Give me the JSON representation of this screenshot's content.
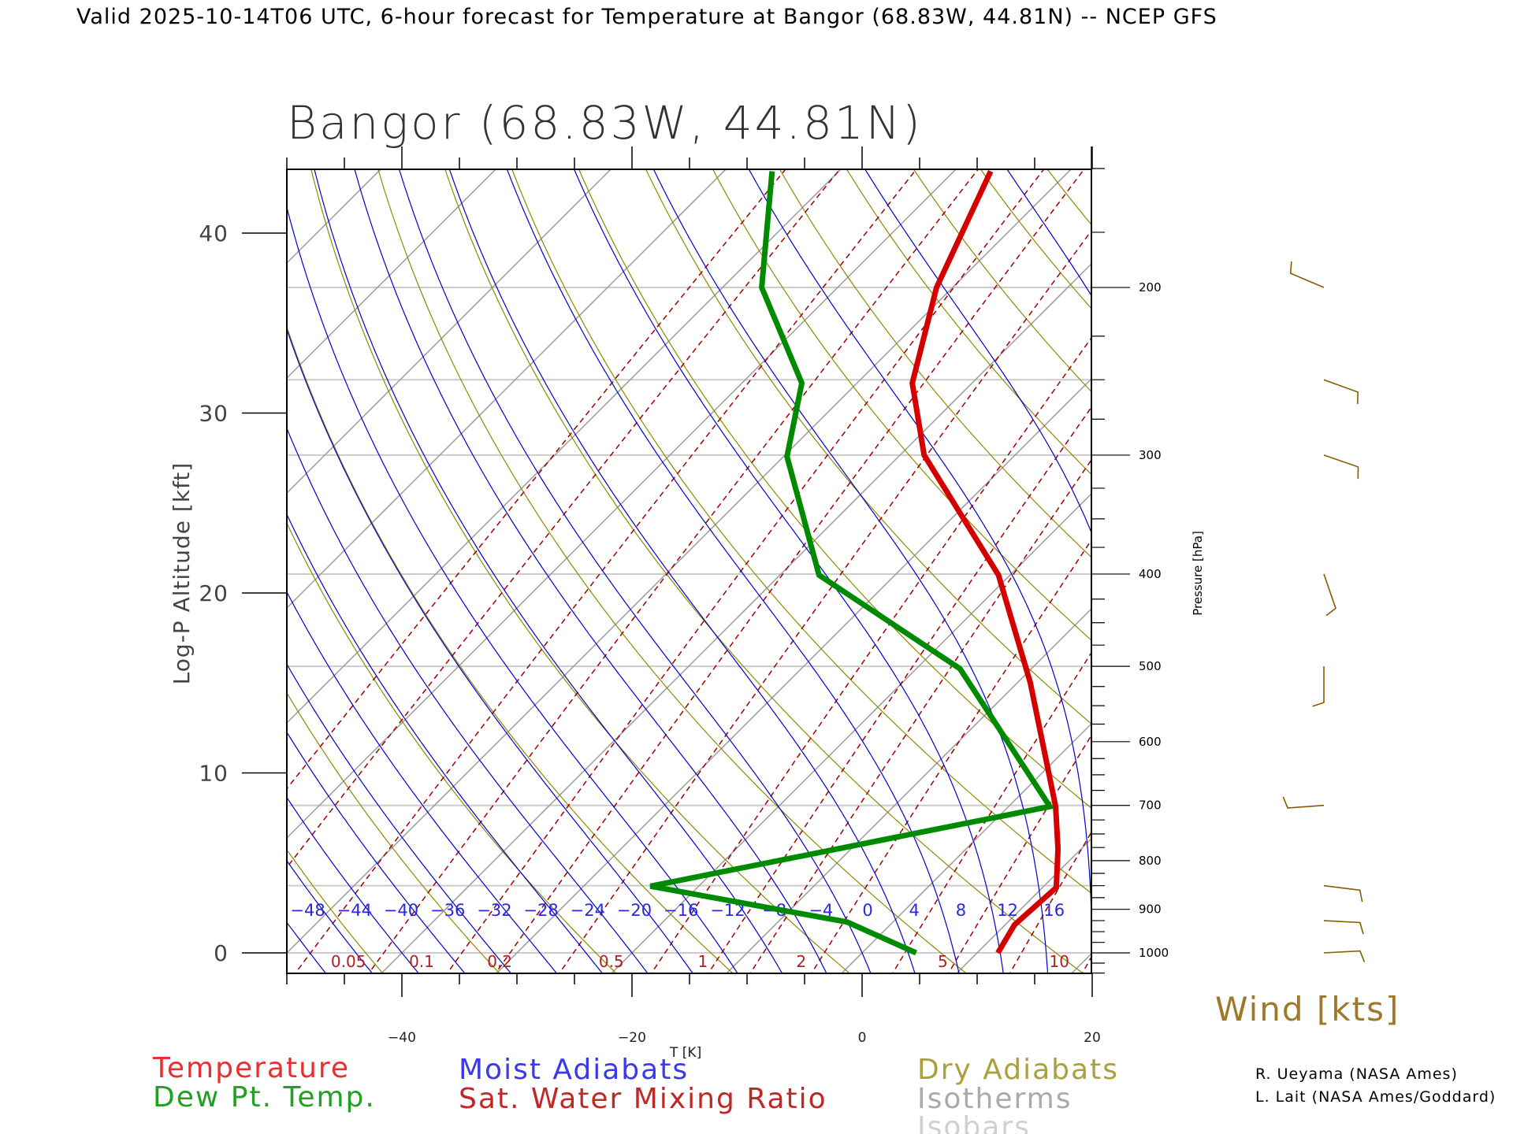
{
  "header": {
    "title": "Valid 2025-10-14T06 UTC, 6-hour forecast for Temperature at Bangor (68.83W, 44.81N) -- NCEP GFS"
  },
  "chart_data": {
    "type": "line",
    "subtype": "skew-T log-P diagram",
    "title": "Bangor (68.83W, 44.81N)",
    "xlabel": "T [K]",
    "ylabel": "Log-P Altitude [kft]",
    "ylabel_right": "Pressure [hPa]",
    "xlim": [
      -50,
      20
    ],
    "pressure_range_hpa": [
      1050,
      150
    ],
    "x_ticks": [
      -40,
      -20,
      0,
      20
    ],
    "x_tick_labels": [
      "−40",
      "−20",
      "0",
      "20"
    ],
    "altitude_ticks_kft": [
      0,
      10,
      20,
      30,
      40
    ],
    "altitude_tick_labels": [
      "0",
      "10",
      "20",
      "30",
      "40"
    ],
    "pressure_tick_labels": [
      200,
      300,
      400,
      500,
      600,
      700,
      800,
      900,
      1000
    ],
    "isobars_hpa": [
      1000,
      850,
      700,
      500,
      400,
      300,
      250,
      200
    ],
    "series": [
      {
        "name": "Temperature",
        "color": "#d40000",
        "points": [
          [
            1000,
            11.8
          ],
          [
            934,
            10.8
          ],
          [
            854,
            11.2
          ],
          [
            778,
            8.0
          ],
          [
            702,
            4.1
          ],
          [
            520,
            -8.9
          ],
          [
            401,
            -21.0
          ],
          [
            300,
            -37.9
          ],
          [
            252,
            -45.2
          ],
          [
            200,
            -51.4
          ],
          [
            151,
            -56.8
          ]
        ]
      },
      {
        "name": "Dew Pt. Temp.",
        "color": "#008a00",
        "points": [
          [
            1000,
            4.7
          ],
          [
            928,
            -4.0
          ],
          [
            851,
            -24.2
          ],
          [
            702,
            3.6
          ],
          [
            503,
            -16.2
          ],
          [
            401,
            -36.6
          ],
          [
            301,
            -49.7
          ],
          [
            252,
            -54.8
          ],
          [
            200,
            -66.6
          ],
          [
            151,
            -75.8
          ]
        ]
      }
    ],
    "moist_adiabat_labels": [
      "−48",
      "−44",
      "−40",
      "−36",
      "−32",
      "−28",
      "−24",
      "−20",
      "−16",
      "−12",
      "−8",
      "−4",
      "0",
      "4",
      "8",
      "12",
      "16"
    ],
    "moist_adiabat_values": [
      -48,
      -44,
      -40,
      -36,
      -32,
      -28,
      -24,
      -20,
      -16,
      -12,
      -8,
      -4,
      0,
      4,
      8,
      12,
      16
    ],
    "mixing_ratio_labels": [
      "0.05",
      "0.1",
      "0.2",
      "0.5",
      "1",
      "2",
      "5",
      "10"
    ],
    "mixing_ratio_values": [
      0.05,
      0.1,
      0.2,
      0.5,
      1,
      2,
      5,
      10
    ],
    "wind": {
      "title": "Wind [kts]",
      "barbs": [
        {
          "p": 200,
          "dir_deg": 293,
          "speed_kts": 5
        },
        {
          "p": 250,
          "dir_deg": 110,
          "speed_kts": 5
        },
        {
          "p": 300,
          "dir_deg": 109,
          "speed_kts": 5
        },
        {
          "p": 400,
          "dir_deg": 161,
          "speed_kts": 5
        },
        {
          "p": 500,
          "dir_deg": 180,
          "speed_kts": 5
        },
        {
          "p": 700,
          "dir_deg": 266,
          "speed_kts": 5
        },
        {
          "p": 850,
          "dir_deg": 97,
          "speed_kts": 5
        },
        {
          "p": 925,
          "dir_deg": 93,
          "speed_kts": 5
        },
        {
          "p": 1000,
          "dir_deg": 87,
          "speed_kts": 5
        }
      ]
    }
  },
  "legend": {
    "temperature": "Temperature",
    "dewpoint": "Dew Pt. Temp.",
    "moist": "Moist Adiabats",
    "mixing": "Sat. Water Mixing Ratio",
    "dry": "Dry Adiabats",
    "isotherms": "Isotherms",
    "isobars": "Isobars"
  },
  "colors": {
    "temperature": "#d40000",
    "dewpoint": "#008a00",
    "moist": "#0000d0",
    "mixing": "#a00000",
    "dry": "#8f8a00",
    "isotherms": "#999999",
    "isobars": "#cccccc",
    "wind": "#8a5a00"
  },
  "credits": [
    "R. Ueyama (NASA Ames)",
    "L. Lait (NASA Ames/Goddard)"
  ]
}
